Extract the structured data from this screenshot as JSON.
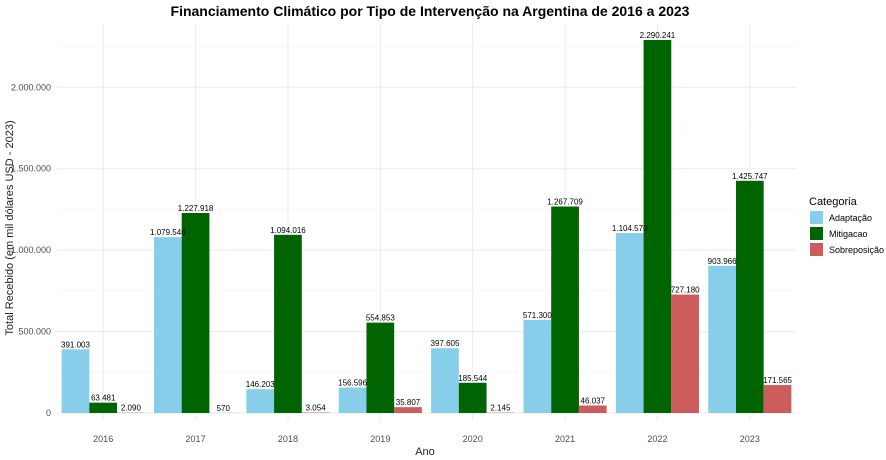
{
  "chart_data": {
    "type": "bar",
    "title": "Financiamento Climático por Tipo de Intervenção na Argentina de 2016 a 2023",
    "xlabel": "Ano",
    "ylabel": "Total Recebido (em mil dólares USD - 2023)",
    "categories": [
      "2016",
      "2017",
      "2018",
      "2019",
      "2020",
      "2021",
      "2022",
      "2023"
    ],
    "ylim": [
      0,
      2290241
    ],
    "yticks": [
      0,
      500000,
      1000000,
      1500000,
      2000000
    ],
    "ytick_labels": [
      "0",
      "500.000",
      "1.000.000",
      "1.500.000",
      "2.000.000"
    ],
    "grid": true,
    "legend": {
      "title": "Categoria",
      "position": "right"
    },
    "series": [
      {
        "name": "Adaptação",
        "color": "#87CEEB",
        "values": [
          391003,
          1079546,
          146203,
          156596,
          397605,
          571300,
          1104570,
          903966
        ],
        "labels": [
          "391.003",
          "1.079.546",
          "146.203",
          "156.596",
          "397.605",
          "571.300",
          "1.104.570",
          "903.966"
        ]
      },
      {
        "name": "Mitigacao",
        "color": "#006400",
        "values": [
          63481,
          1227918,
          1094016,
          554853,
          185544,
          1267709,
          2290241,
          1425747
        ],
        "labels": [
          "63.481",
          "1.227.918",
          "1.094.016",
          "554.853",
          "185.544",
          "1.267.709",
          "2.290.241",
          "1.425.747"
        ]
      },
      {
        "name": "Sobreposição",
        "color": "#CD5C5C",
        "values": [
          2090,
          570,
          3054,
          35807,
          2145,
          46037,
          727180,
          171565
        ],
        "labels": [
          "2.090",
          "570",
          "3.054",
          "35.807",
          "2.145",
          "46.037",
          "727.180",
          "171.565"
        ]
      }
    ]
  }
}
